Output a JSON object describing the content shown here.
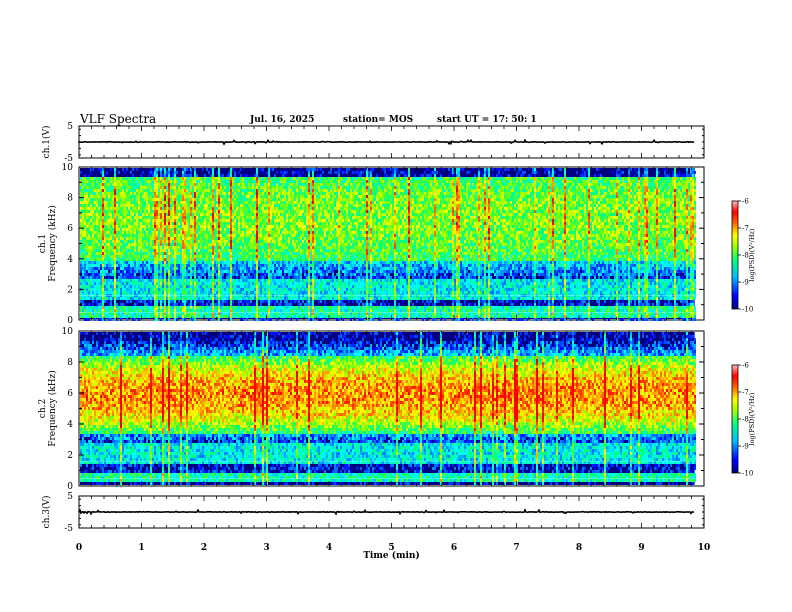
{
  "header": {
    "title": "VLF Spectra",
    "date": "Jul. 16, 2025",
    "station": "station= MOS",
    "start": "start  UT  =   17: 50: 1"
  },
  "chart_data": [
    {
      "type": "line",
      "name": "ch1-waveform",
      "ylabel": "ch.1(V)",
      "ylim": [
        -5,
        5
      ],
      "yticks": [
        "5",
        "-5"
      ],
      "baseline": 0
    },
    {
      "type": "heatmap",
      "name": "ch1-spectrogram",
      "ylabel": "ch.1\nFrequency (kHz)",
      "ylabel_line1": "ch.1",
      "ylabel_line2": "Frequency (kHz)",
      "ylim": [
        0,
        10
      ],
      "yticks": [
        "0",
        "2",
        "4",
        "6",
        "8",
        "10"
      ],
      "dominant_band_khz": [
        4,
        9.5
      ],
      "colorbar": {
        "label": "log(PSD)(V²/Hz)",
        "min": -10,
        "max": -6,
        "ticks": [
          "-6",
          "-7",
          "-8",
          "-9",
          "-10"
        ]
      }
    },
    {
      "type": "heatmap",
      "name": "ch2-spectrogram",
      "ylabel_line1": "ch.2",
      "ylabel_line2": "Frequency (kHz)",
      "ylim": [
        0,
        10
      ],
      "yticks": [
        "0",
        "2",
        "4",
        "6",
        "8",
        "10"
      ],
      "dominant_band_khz": [
        3.5,
        8.5
      ],
      "colorbar": {
        "label": "log(PSD)(V²/Hz)",
        "min": -10,
        "max": -6,
        "ticks": [
          "-6",
          "-7",
          "-8",
          "-9",
          "-10"
        ]
      }
    },
    {
      "type": "line",
      "name": "ch3-waveform",
      "ylabel": "ch.3(V)",
      "ylim": [
        -5,
        5
      ],
      "yticks": [
        "5",
        "-5"
      ],
      "baseline": 0
    }
  ],
  "xaxis": {
    "label": "Time (min)",
    "xlim": [
      0,
      10
    ],
    "ticks": [
      "0",
      "1",
      "2",
      "3",
      "4",
      "5",
      "6",
      "7",
      "8",
      "9",
      "10"
    ],
    "data_end_min": 9.85
  },
  "colors": {
    "jet": [
      "#000080",
      "#0000ff",
      "#0080ff",
      "#00ffff",
      "#00ff80",
      "#80ff00",
      "#ffff00",
      "#ff8000",
      "#ff0000",
      "#ff8080",
      "#ffffff"
    ]
  }
}
